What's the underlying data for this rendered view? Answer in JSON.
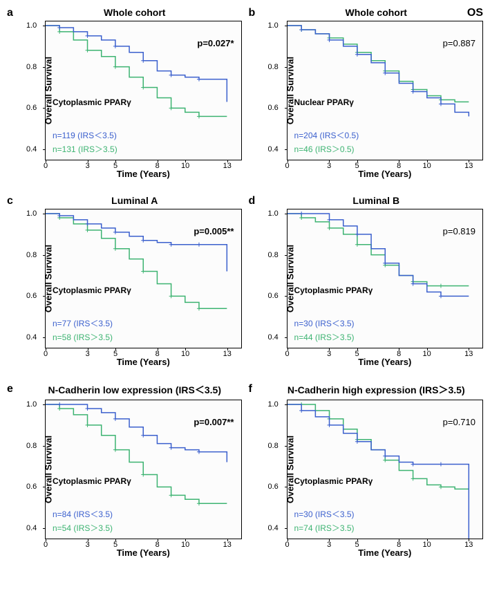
{
  "global": {
    "os_label": "OS",
    "x_axis_label": "Time (Years)",
    "y_axis_label": "Overall Survival",
    "y_ticks": [
      0.4,
      0.6,
      0.8,
      1.0
    ],
    "x_ticks": [
      0,
      3,
      5,
      8,
      10,
      13
    ],
    "y_min": 0.35,
    "y_max": 1.02,
    "x_min": 0,
    "x_max": 14,
    "colors": {
      "blue": "#3a5fcd",
      "green": "#3cb371",
      "axis": "#000000",
      "bg": "#ffffff"
    },
    "font_sizes": {
      "letter": 16,
      "title": 14,
      "axis_label": 13,
      "tick": 11,
      "legend": 12,
      "pvalue": 13
    }
  },
  "panels": [
    {
      "letter": "a",
      "title": "Whole cohort",
      "show_os": false,
      "marker_label": "Cytoplasmic PPARγ",
      "p_value": "p=0.027*",
      "p_bold": true,
      "legend_blue": "n=119 (IRS＜3.5)",
      "legend_green": "n=131 (IRS＞3.5)",
      "blue_curve": [
        [
          0,
          1.0
        ],
        [
          1,
          0.99
        ],
        [
          2,
          0.97
        ],
        [
          3,
          0.95
        ],
        [
          4,
          0.93
        ],
        [
          5,
          0.9
        ],
        [
          6,
          0.87
        ],
        [
          7,
          0.83
        ],
        [
          8,
          0.78
        ],
        [
          9,
          0.76
        ],
        [
          10,
          0.75
        ],
        [
          11,
          0.74
        ],
        [
          12,
          0.74
        ],
        [
          13,
          0.63
        ]
      ],
      "green_curve": [
        [
          0,
          1.0
        ],
        [
          1,
          0.97
        ],
        [
          2,
          0.93
        ],
        [
          3,
          0.88
        ],
        [
          4,
          0.85
        ],
        [
          5,
          0.8
        ],
        [
          6,
          0.75
        ],
        [
          7,
          0.7
        ],
        [
          8,
          0.65
        ],
        [
          9,
          0.6
        ],
        [
          10,
          0.58
        ],
        [
          11,
          0.56
        ],
        [
          12,
          0.56
        ],
        [
          13,
          0.56
        ]
      ]
    },
    {
      "letter": "b",
      "title": "Whole cohort",
      "show_os": true,
      "marker_label": "Nuclear PPARγ",
      "p_value": "p=0.887",
      "p_bold": false,
      "legend_blue": "n=204 (IRS＜0.5)",
      "legend_green": "n=46 (IRS＞0.5)",
      "blue_curve": [
        [
          0,
          1.0
        ],
        [
          1,
          0.98
        ],
        [
          2,
          0.96
        ],
        [
          3,
          0.93
        ],
        [
          4,
          0.9
        ],
        [
          5,
          0.86
        ],
        [
          6,
          0.82
        ],
        [
          7,
          0.77
        ],
        [
          8,
          0.72
        ],
        [
          9,
          0.68
        ],
        [
          10,
          0.65
        ],
        [
          11,
          0.62
        ],
        [
          12,
          0.58
        ],
        [
          13,
          0.56
        ]
      ],
      "green_curve": [
        [
          0,
          1.0
        ],
        [
          1,
          0.98
        ],
        [
          2,
          0.96
        ],
        [
          3,
          0.94
        ],
        [
          4,
          0.91
        ],
        [
          5,
          0.87
        ],
        [
          6,
          0.83
        ],
        [
          7,
          0.78
        ],
        [
          8,
          0.73
        ],
        [
          9,
          0.69
        ],
        [
          10,
          0.66
        ],
        [
          11,
          0.64
        ],
        [
          12,
          0.63
        ],
        [
          13,
          0.63
        ]
      ]
    },
    {
      "letter": "c",
      "title": "Luminal A",
      "show_os": false,
      "marker_label": "Cytoplasmic PPARγ",
      "p_value": "p=0.005**",
      "p_bold": true,
      "legend_blue": "n=77 (IRS＜3.5)",
      "legend_green": "n=58 (IRS＞3.5)",
      "blue_curve": [
        [
          0,
          1.0
        ],
        [
          1,
          0.99
        ],
        [
          2,
          0.97
        ],
        [
          3,
          0.95
        ],
        [
          4,
          0.93
        ],
        [
          5,
          0.91
        ],
        [
          6,
          0.89
        ],
        [
          7,
          0.87
        ],
        [
          8,
          0.86
        ],
        [
          9,
          0.85
        ],
        [
          10,
          0.85
        ],
        [
          11,
          0.85
        ],
        [
          12,
          0.85
        ],
        [
          13,
          0.72
        ]
      ],
      "green_curve": [
        [
          0,
          1.0
        ],
        [
          1,
          0.98
        ],
        [
          2,
          0.95
        ],
        [
          3,
          0.92
        ],
        [
          4,
          0.88
        ],
        [
          5,
          0.83
        ],
        [
          6,
          0.78
        ],
        [
          7,
          0.72
        ],
        [
          8,
          0.66
        ],
        [
          9,
          0.6
        ],
        [
          10,
          0.57
        ],
        [
          11,
          0.54
        ],
        [
          12,
          0.54
        ],
        [
          13,
          0.54
        ]
      ]
    },
    {
      "letter": "d",
      "title": "Luminal B",
      "show_os": false,
      "marker_label": "Cytoplasmic PPARγ",
      "p_value": "p=0.819",
      "p_bold": false,
      "legend_blue": "n=30 (IRS＜3.5)",
      "legend_green": "n=44 (IRS＞3.5)",
      "blue_curve": [
        [
          0,
          1.0
        ],
        [
          1,
          1.0
        ],
        [
          2,
          1.0
        ],
        [
          3,
          0.97
        ],
        [
          4,
          0.94
        ],
        [
          5,
          0.9
        ],
        [
          6,
          0.83
        ],
        [
          7,
          0.76
        ],
        [
          8,
          0.7
        ],
        [
          9,
          0.66
        ],
        [
          10,
          0.62
        ],
        [
          11,
          0.6
        ],
        [
          12,
          0.6
        ],
        [
          13,
          0.6
        ]
      ],
      "green_curve": [
        [
          0,
          1.0
        ],
        [
          1,
          0.98
        ],
        [
          2,
          0.96
        ],
        [
          3,
          0.93
        ],
        [
          4,
          0.9
        ],
        [
          5,
          0.85
        ],
        [
          6,
          0.8
        ],
        [
          7,
          0.75
        ],
        [
          8,
          0.7
        ],
        [
          9,
          0.67
        ],
        [
          10,
          0.65
        ],
        [
          11,
          0.65
        ],
        [
          12,
          0.65
        ],
        [
          13,
          0.65
        ]
      ]
    },
    {
      "letter": "e",
      "title": "N-Cadherin low expression (IRS＜3.5)",
      "show_os": false,
      "marker_label": "Cytoplasmic PPARγ",
      "p_value": "p=0.007**",
      "p_bold": true,
      "legend_blue": "n=84 (IRS＜3.5)",
      "legend_green": "n=54 (IRS＞3.5)",
      "blue_curve": [
        [
          0,
          1.0
        ],
        [
          1,
          1.0
        ],
        [
          2,
          1.0
        ],
        [
          3,
          0.98
        ],
        [
          4,
          0.96
        ],
        [
          5,
          0.93
        ],
        [
          6,
          0.89
        ],
        [
          7,
          0.85
        ],
        [
          8,
          0.81
        ],
        [
          9,
          0.79
        ],
        [
          10,
          0.78
        ],
        [
          11,
          0.77
        ],
        [
          12,
          0.77
        ],
        [
          13,
          0.72
        ]
      ],
      "green_curve": [
        [
          0,
          1.0
        ],
        [
          1,
          0.98
        ],
        [
          2,
          0.95
        ],
        [
          3,
          0.9
        ],
        [
          4,
          0.85
        ],
        [
          5,
          0.78
        ],
        [
          6,
          0.72
        ],
        [
          7,
          0.66
        ],
        [
          8,
          0.6
        ],
        [
          9,
          0.56
        ],
        [
          10,
          0.54
        ],
        [
          11,
          0.52
        ],
        [
          12,
          0.52
        ],
        [
          13,
          0.52
        ]
      ]
    },
    {
      "letter": "f",
      "title": "N-Cadherin high expression (IRS＞3.5)",
      "show_os": false,
      "marker_label": "Cytoplasmic PPARγ",
      "p_value": "p=0.710",
      "p_bold": false,
      "legend_blue": "n=30 (IRS＜3.5)",
      "legend_green": "n=74 (IRS＞3.5)",
      "blue_curve": [
        [
          0,
          1.0
        ],
        [
          1,
          0.97
        ],
        [
          2,
          0.94
        ],
        [
          3,
          0.9
        ],
        [
          4,
          0.86
        ],
        [
          5,
          0.82
        ],
        [
          6,
          0.78
        ],
        [
          7,
          0.75
        ],
        [
          8,
          0.72
        ],
        [
          9,
          0.71
        ],
        [
          10,
          0.71
        ],
        [
          11,
          0.71
        ],
        [
          12,
          0.71
        ],
        [
          13,
          0.0
        ]
      ],
      "green_curve": [
        [
          0,
          1.0
        ],
        [
          1,
          1.0
        ],
        [
          2,
          0.97
        ],
        [
          3,
          0.93
        ],
        [
          4,
          0.88
        ],
        [
          5,
          0.83
        ],
        [
          6,
          0.78
        ],
        [
          7,
          0.73
        ],
        [
          8,
          0.68
        ],
        [
          9,
          0.64
        ],
        [
          10,
          0.61
        ],
        [
          11,
          0.6
        ],
        [
          12,
          0.59
        ],
        [
          13,
          0.59
        ]
      ]
    }
  ]
}
